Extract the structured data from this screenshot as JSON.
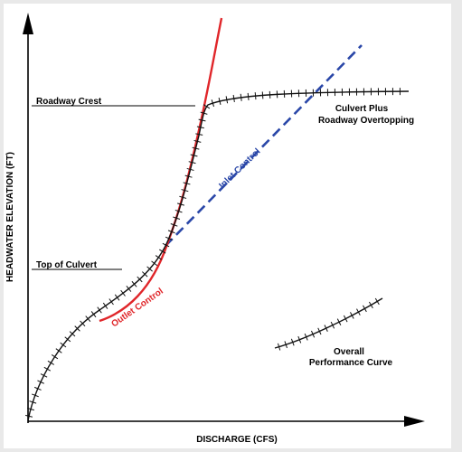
{
  "axes": {
    "x_label": "DISCHARGE (CFS)",
    "y_label": "HEADWATER ELEVATION (FT)"
  },
  "reference_lines": {
    "roadway_crest": "Roadway Crest",
    "top_of_culvert": "Top of Culvert"
  },
  "curves": {
    "outlet_control": "Outlet Control",
    "inlet_control": "Inlet Control",
    "culvert_plus_roadway_line1": "Culvert Plus",
    "culvert_plus_roadway_line2": "Roadway Overtopping",
    "overall_line1": "Overall",
    "overall_line2": "Performance Curve"
  },
  "colors": {
    "outlet": "#e0262a",
    "inlet": "#2a47a8",
    "overall": "#111111"
  }
}
